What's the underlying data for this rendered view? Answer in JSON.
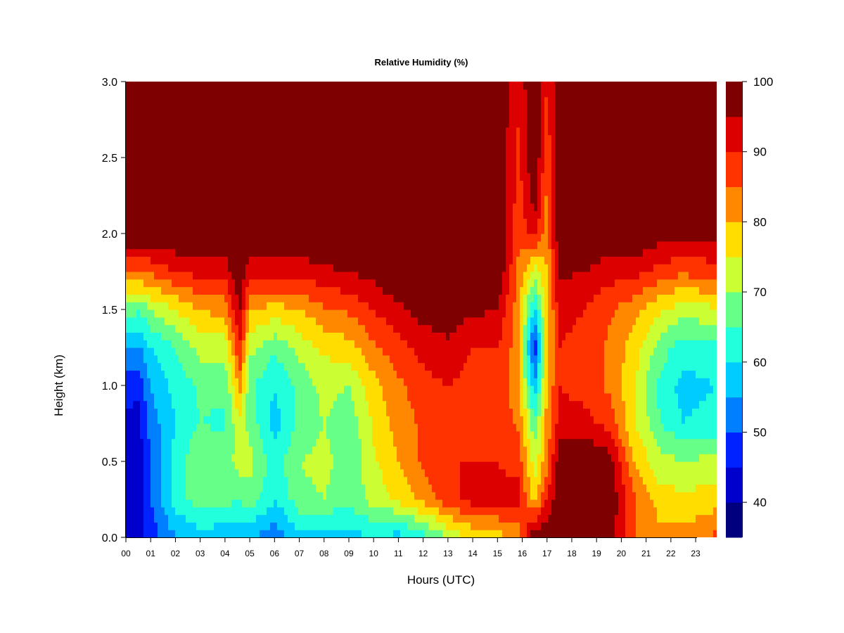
{
  "chart_data": {
    "type": "heatmap",
    "title": "Relative Humidity (%)",
    "xlabel": "Hours (UTC)",
    "ylabel": "Height (km)",
    "x_ticks": [
      "00",
      "01",
      "02",
      "03",
      "04",
      "05",
      "06",
      "07",
      "08",
      "09",
      "10",
      "11",
      "12",
      "13",
      "14",
      "15",
      "16",
      "17",
      "18",
      "19",
      "20",
      "21",
      "22",
      "23"
    ],
    "xlim": [
      0,
      23.85
    ],
    "y_ticks": [
      0.0,
      0.5,
      1.0,
      1.5,
      2.0,
      2.5,
      3.0
    ],
    "y_tick_labels": [
      "0.0",
      "0.5",
      "1.0",
      "1.5",
      "2.0",
      "2.5",
      "3.0"
    ],
    "ylim": [
      0.0,
      3.0
    ],
    "colorbar": {
      "levels": [
        35,
        40,
        45,
        50,
        55,
        60,
        65,
        70,
        75,
        80,
        85,
        90,
        95,
        100
      ],
      "tick_values": [
        40,
        50,
        60,
        70,
        80,
        90,
        100
      ],
      "tick_labels": [
        "40",
        "50",
        "60",
        "70",
        "80",
        "90",
        "100"
      ],
      "colors": [
        "#00007f",
        "#0000cc",
        "#0022ff",
        "#0080ff",
        "#00ccff",
        "#22ffdd",
        "#66ff88",
        "#ccff33",
        "#ffdd00",
        "#ff8800",
        "#ff3300",
        "#dd0000",
        "#7f0000"
      ]
    },
    "profiles": [
      {
        "hour": 0.0,
        "rh": [
          45,
          44,
          43,
          44,
          47,
          55,
          68,
          85,
          100,
          100,
          100,
          100,
          100
        ]
      },
      {
        "hour": 0.5,
        "rh": [
          44,
          43,
          42,
          43,
          46,
          54,
          66,
          84,
          100,
          100,
          100,
          100,
          100
        ]
      },
      {
        "hour": 1.0,
        "rh": [
          47,
          50,
          50,
          52,
          55,
          60,
          70,
          86,
          100,
          100,
          100,
          100,
          100
        ]
      },
      {
        "hour": 2.0,
        "rh": [
          55,
          62,
          62,
          60,
          62,
          65,
          75,
          90,
          100,
          100,
          100,
          100,
          100
        ]
      },
      {
        "hour": 3.0,
        "rh": [
          57,
          68,
          70,
          65,
          66,
          72,
          80,
          92,
          100,
          100,
          100,
          100,
          100
        ]
      },
      {
        "hour": 4.0,
        "rh": [
          57,
          66,
          68,
          64,
          66,
          72,
          82,
          92,
          100,
          100,
          100,
          100,
          100
        ]
      },
      {
        "hour": 4.6,
        "rh": [
          55,
          66,
          72,
          74,
          82,
          90,
          96,
          100,
          100,
          100,
          100,
          100,
          100
        ]
      },
      {
        "hour": 5.0,
        "rh": [
          55,
          68,
          72,
          68,
          66,
          72,
          80,
          92,
          100,
          100,
          100,
          100,
          100
        ]
      },
      {
        "hour": 6.0,
        "rh": [
          52,
          60,
          62,
          58,
          60,
          66,
          78,
          92,
          100,
          100,
          100,
          100,
          100
        ]
      },
      {
        "hour": 7.0,
        "rh": [
          58,
          68,
          70,
          66,
          66,
          72,
          80,
          92,
          100,
          100,
          100,
          100,
          100
        ]
      },
      {
        "hour": 8.0,
        "rh": [
          57,
          70,
          72,
          70,
          72,
          76,
          84,
          94,
          100,
          100,
          100,
          100,
          100
        ]
      },
      {
        "hour": 9.0,
        "rh": [
          58,
          66,
          66,
          66,
          70,
          78,
          86,
          95,
          100,
          100,
          100,
          100,
          100
        ]
      },
      {
        "hour": 10.0,
        "rh": [
          60,
          72,
          74,
          76,
          78,
          84,
          90,
          97,
          100,
          100,
          100,
          100,
          100
        ]
      },
      {
        "hour": 11.0,
        "rh": [
          58,
          76,
          80,
          82,
          84,
          88,
          94,
          100,
          100,
          100,
          100,
          100,
          100
        ]
      },
      {
        "hour": 12.0,
        "rh": [
          62,
          82,
          86,
          86,
          88,
          92,
          97,
          100,
          100,
          100,
          100,
          100,
          100
        ]
      },
      {
        "hour": 13.0,
        "rh": [
          70,
          88,
          90,
          90,
          90,
          94,
          98,
          100,
          100,
          100,
          100,
          100,
          100
        ]
      },
      {
        "hour": 14.0,
        "rh": [
          76,
          92,
          90,
          88,
          88,
          90,
          96,
          100,
          100,
          100,
          100,
          100,
          100
        ]
      },
      {
        "hour": 15.0,
        "rh": [
          78,
          92,
          90,
          88,
          88,
          90,
          95,
          100,
          100,
          100,
          100,
          100,
          100
        ]
      },
      {
        "hour": 15.85,
        "rh": [
          82,
          92,
          88,
          84,
          82,
          82,
          82,
          84,
          86,
          88,
          88,
          90,
          92
        ]
      },
      {
        "hour": 16.5,
        "rh": [
          100,
          78,
          72,
          66,
          55,
          45,
          58,
          72,
          92,
          98,
          100,
          100,
          100
        ]
      },
      {
        "hour": 17.0,
        "rh": [
          100,
          90,
          84,
          82,
          80,
          78,
          78,
          80,
          82,
          84,
          86,
          88,
          90
        ]
      },
      {
        "hour": 17.5,
        "rh": [
          100,
          100,
          98,
          92,
          90,
          90,
          92,
          96,
          100,
          100,
          100,
          100,
          100
        ]
      },
      {
        "hour": 18.5,
        "rh": [
          100,
          100,
          100,
          92,
          88,
          88,
          90,
          95,
          100,
          100,
          100,
          100,
          100
        ]
      },
      {
        "hour": 19.5,
        "rh": [
          98,
          100,
          98,
          88,
          84,
          84,
          86,
          92,
          100,
          100,
          100,
          100,
          100
        ]
      },
      {
        "hour": 20.5,
        "rh": [
          85,
          86,
          80,
          76,
          76,
          78,
          82,
          92,
          100,
          100,
          100,
          100,
          100
        ]
      },
      {
        "hour": 21.5,
        "rh": [
          82,
          78,
          72,
          66,
          64,
          68,
          76,
          88,
          98,
          100,
          100,
          100,
          100
        ]
      },
      {
        "hour": 22.5,
        "rh": [
          82,
          76,
          70,
          60,
          58,
          62,
          72,
          86,
          96,
          100,
          100,
          100,
          100
        ]
      },
      {
        "hour": 23.85,
        "rh": [
          86,
          78,
          72,
          62,
          60,
          64,
          74,
          88,
          96,
          100,
          100,
          100,
          100
        ]
      }
    ],
    "profile_heights_km": [
      0.0,
      0.25,
      0.5,
      0.75,
      1.0,
      1.25,
      1.5,
      1.75,
      2.0,
      2.25,
      2.5,
      2.75,
      3.0
    ],
    "grid": false,
    "legend": "right"
  }
}
